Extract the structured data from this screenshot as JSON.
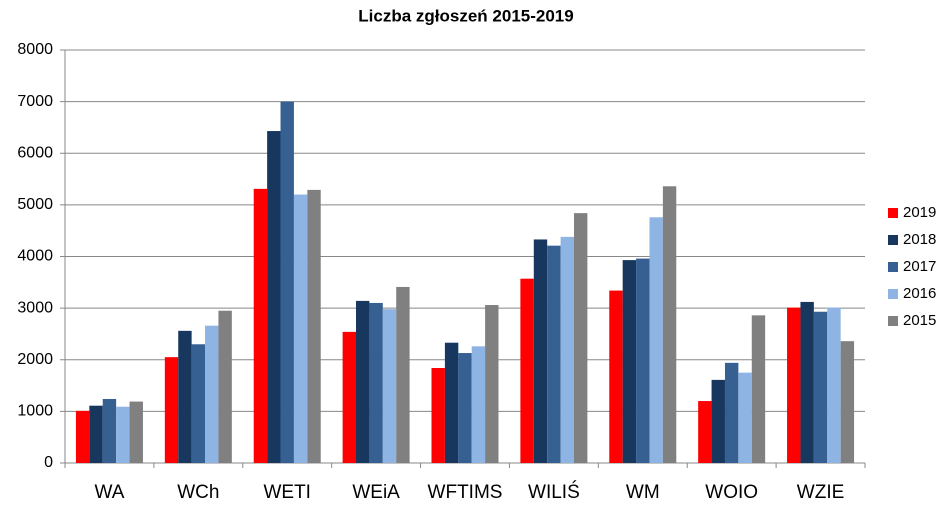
{
  "chart_data": {
    "type": "bar",
    "title": "Liczba zgłoszeń 2015-2019",
    "categories": [
      "WA",
      "WCh",
      "WETI",
      "WEiA",
      "WFTIMS",
      "WILIŚ",
      "WM",
      "WOIO",
      "WZIE"
    ],
    "series": [
      {
        "name": "2019",
        "color": "#ff0000",
        "values": [
          1010,
          2050,
          5310,
          2540,
          1840,
          3570,
          3340,
          1200,
          3010
        ]
      },
      {
        "name": "2018",
        "color": "#17375e",
        "values": [
          1110,
          2560,
          6430,
          3140,
          2330,
          4330,
          3930,
          1610,
          3120
        ]
      },
      {
        "name": "2017",
        "color": "#376092",
        "values": [
          1240,
          2300,
          7000,
          3100,
          2130,
          4210,
          3960,
          1940,
          2930
        ]
      },
      {
        "name": "2016",
        "color": "#8eb4e3",
        "values": [
          1090,
          2660,
          5200,
          2980,
          2260,
          4380,
          4760,
          1750,
          3010
        ]
      },
      {
        "name": "2015",
        "color": "#808080",
        "values": [
          1190,
          2950,
          5290,
          3410,
          3060,
          4840,
          5360,
          2860,
          2360
        ]
      }
    ],
    "ylim": [
      0,
      8000
    ],
    "yticks": [
      0,
      1000,
      2000,
      3000,
      4000,
      5000,
      6000,
      7000,
      8000
    ],
    "grid": true,
    "legend": "right"
  }
}
